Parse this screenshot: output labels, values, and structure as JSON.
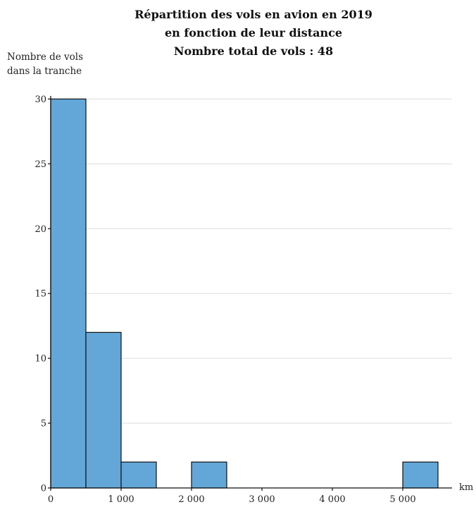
{
  "chart_data": {
    "type": "bar",
    "title_lines": [
      "Répartition des vols en avion en 2019",
      "en fonction de leur distance",
      "Nombre total de vols : 48"
    ],
    "ylabel_lines": [
      "Nombre de vols",
      "dans la tranche"
    ],
    "xlabel": "km",
    "bin_width": 500,
    "bins": [
      {
        "start": 0,
        "end": 500,
        "value": 30
      },
      {
        "start": 500,
        "end": 1000,
        "value": 12
      },
      {
        "start": 1000,
        "end": 1500,
        "value": 2
      },
      {
        "start": 1500,
        "end": 2000,
        "value": 0
      },
      {
        "start": 2000,
        "end": 2500,
        "value": 2
      },
      {
        "start": 2500,
        "end": 3000,
        "value": 0
      },
      {
        "start": 3000,
        "end": 3500,
        "value": 0
      },
      {
        "start": 3500,
        "end": 4000,
        "value": 0
      },
      {
        "start": 4000,
        "end": 4500,
        "value": 0
      },
      {
        "start": 4500,
        "end": 5000,
        "value": 0
      },
      {
        "start": 5000,
        "end": 5500,
        "value": 2
      }
    ],
    "xlim": [
      0,
      5700
    ],
    "ylim": [
      0,
      31
    ],
    "y_ticks": [
      0,
      5,
      10,
      15,
      20,
      25,
      30
    ],
    "y_tick_labels": [
      "0",
      "5",
      "10",
      "15",
      "20",
      "25",
      "30"
    ],
    "x_ticks": [
      0,
      1000,
      2000,
      3000,
      4000,
      5000
    ],
    "x_tick_labels": [
      "0",
      "1 000",
      "2 000",
      "3 000",
      "4 000",
      "5 000"
    ],
    "grid": "horizontal",
    "bar_color": "#62a7d8",
    "edge_color": "#111111"
  }
}
